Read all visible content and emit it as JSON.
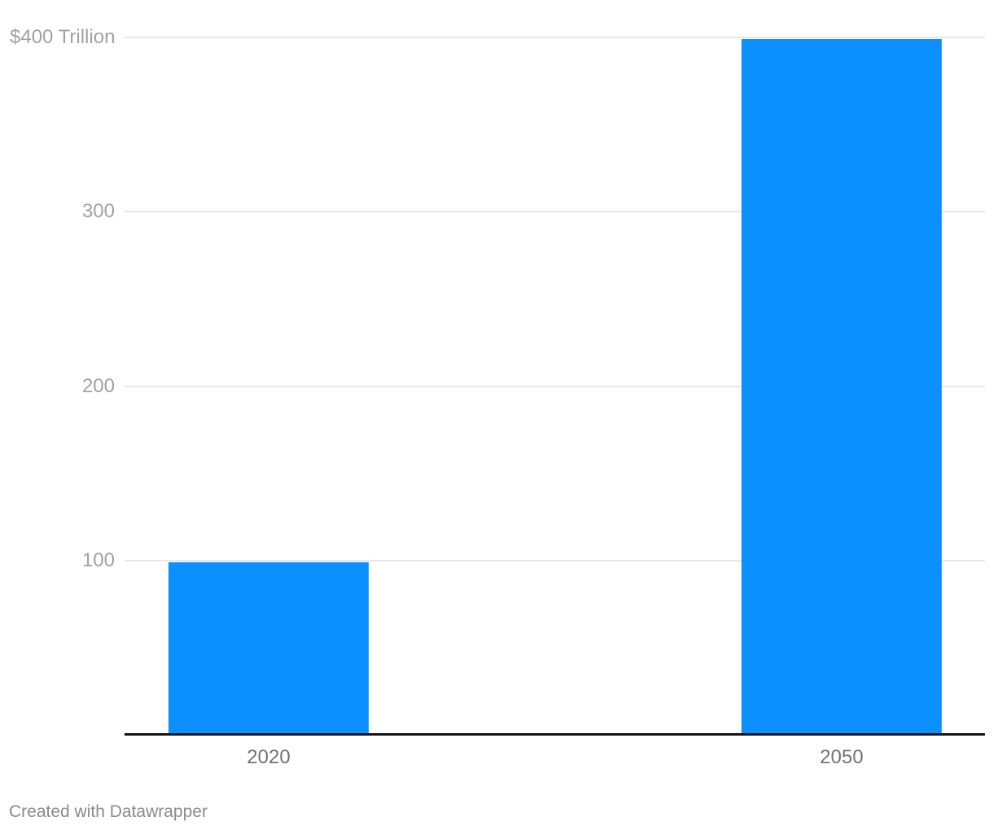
{
  "chart_data": {
    "type": "bar",
    "categories": [
      "2020",
      "2050"
    ],
    "values": [
      100,
      400
    ],
    "title": "",
    "xlabel": "",
    "ylabel": "",
    "ylim": [
      0,
      400
    ],
    "yticks": [
      {
        "value": 400,
        "label": "$400 Trillion"
      },
      {
        "value": 300,
        "label": "300"
      },
      {
        "value": 200,
        "label": "200"
      },
      {
        "value": 100,
        "label": "100"
      }
    ],
    "grid": true,
    "legend": "none",
    "bar_color": "#0d90ff"
  },
  "colors": {
    "background": "#ffffff",
    "bar": "#0d90ff",
    "gridline": "#e7e7e7",
    "baseline": "#151515",
    "ytick_text": "#a1a1a1",
    "xtick_text": "#737373",
    "credit_text": "#8a8a8a"
  },
  "footer": {
    "credit": "Created with Datawrapper"
  }
}
